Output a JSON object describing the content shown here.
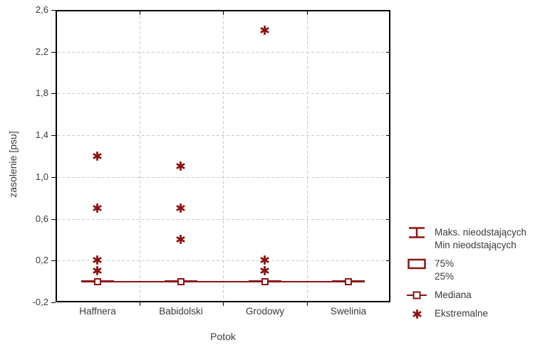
{
  "colors": {
    "series": "#8B1414",
    "grid": "#C9C9C9",
    "axis": "#000000",
    "text": "#3a3a3a",
    "marker_fill": "#ffffff"
  },
  "chart_data": {
    "type": "box",
    "variant": "median-whisker-extremes",
    "title": "",
    "xlabel": "Potok",
    "ylabel": "zasolenie [psu]",
    "ylim": [
      -0.2,
      2.6
    ],
    "grid": "dashed",
    "legend_position": "right",
    "categories": [
      "Haffnera",
      "Babidolski",
      "Grodowy",
      "Swelinia"
    ],
    "y_ticks": [
      {
        "value": 2.6,
        "label": "2,6"
      },
      {
        "value": 2.2,
        "label": "2,2"
      },
      {
        "value": 1.8,
        "label": "1,8"
      },
      {
        "value": 1.4,
        "label": "1,4"
      },
      {
        "value": 1.0,
        "label": "1,0"
      },
      {
        "value": 0.6,
        "label": "0,6"
      },
      {
        "value": 0.2,
        "label": "0,2"
      },
      {
        "value": -0.2,
        "label": "-0,2"
      }
    ],
    "series": [
      {
        "category": "Haffnera",
        "median": 0.0,
        "whisker_min": 0.0,
        "whisker_max": 0.0,
        "extremes": [
          1.2,
          0.7,
          0.2,
          0.1
        ]
      },
      {
        "category": "Babidolski",
        "median": 0.0,
        "whisker_min": 0.0,
        "whisker_max": 0.0,
        "extremes": [
          1.1,
          0.7,
          0.4
        ]
      },
      {
        "category": "Grodowy",
        "median": 0.0,
        "whisker_min": 0.0,
        "whisker_max": 0.0,
        "extremes": [
          2.4,
          0.2,
          0.1
        ]
      },
      {
        "category": "Swelinia",
        "median": 0.0,
        "whisker_min": 0.0,
        "whisker_max": 0.0,
        "extremes": []
      }
    ],
    "legend": [
      {
        "symbol": "whisker",
        "lines": [
          "Maks. nieodstających",
          "Min nieodstających"
        ]
      },
      {
        "symbol": "box",
        "lines": [
          "75%",
          "25%"
        ]
      },
      {
        "symbol": "median",
        "lines": [
          "Mediana"
        ]
      },
      {
        "symbol": "extreme",
        "lines": [
          "Ekstremalne"
        ]
      }
    ]
  }
}
